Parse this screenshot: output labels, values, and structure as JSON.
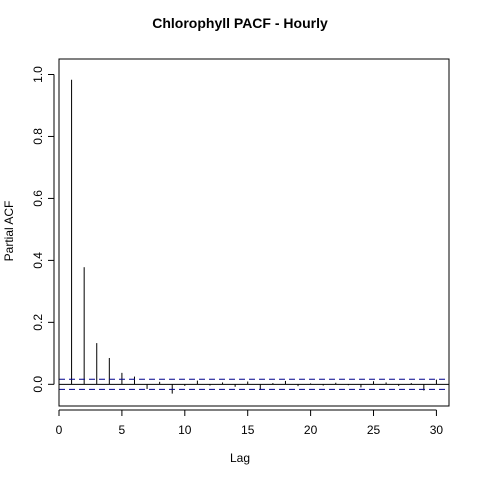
{
  "chart_data": {
    "type": "bar",
    "title": "Chlorophyll PACF - Hourly",
    "xlabel": "Lag",
    "ylabel": "Partial ACF",
    "xlim": [
      0,
      31
    ],
    "ylim": [
      -0.07,
      1.05
    ],
    "xticks": [
      0,
      5,
      10,
      15,
      20,
      25,
      30
    ],
    "yticks": [
      0.0,
      0.2,
      0.4,
      0.6,
      0.8,
      1.0
    ],
    "ytick_labels": [
      "0.0",
      "0.2",
      "0.4",
      "0.6",
      "0.8",
      "1.0"
    ],
    "zero_line": 0,
    "confidence_bound": 0.0165,
    "confidence_color": "#00008b",
    "bar_color": "#000000",
    "grid": false,
    "x": [
      1,
      2,
      3,
      4,
      5,
      6,
      7,
      8,
      9,
      10,
      11,
      12,
      13,
      14,
      15,
      16,
      17,
      18,
      19,
      20,
      21,
      22,
      23,
      24,
      25,
      26,
      27,
      28,
      29,
      30
    ],
    "values": [
      0.983,
      0.378,
      0.133,
      0.085,
      0.037,
      0.025,
      -0.015,
      0.008,
      -0.03,
      -0.005,
      0.012,
      -0.004,
      0.006,
      -0.008,
      0.009,
      -0.018,
      0.004,
      0.011,
      -0.006,
      0.003,
      -0.004,
      0.005,
      -0.003,
      -0.01,
      0.01,
      0.006,
      -0.005,
      0.004,
      -0.02,
      0.015
    ]
  }
}
